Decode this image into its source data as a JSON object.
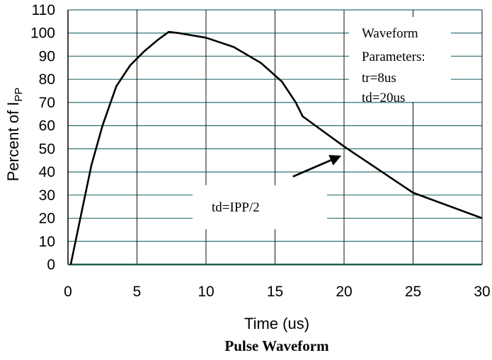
{
  "chart_data": {
    "type": "line",
    "title": "Pulse Waveform",
    "xlabel": "Time (us)",
    "ylabel_main": "Percent of I",
    "ylabel_sub": "PP",
    "xlim": [
      0,
      30
    ],
    "ylim": [
      0,
      110
    ],
    "x_ticks": [
      0,
      5,
      10,
      15,
      20,
      25,
      30
    ],
    "y_ticks": [
      0,
      10,
      20,
      30,
      40,
      50,
      60,
      70,
      80,
      90,
      100,
      110
    ],
    "grid": true,
    "series": [
      {
        "x": [
          0.2,
          0.9,
          1.7,
          2.5,
          3.5,
          4.5,
          5.5,
          6.5,
          7.3,
          8.0,
          10.0,
          12.0,
          14.0,
          15.5,
          16.5,
          17.0,
          20.0,
          25.0,
          30.0
        ],
        "y": [
          0,
          20,
          43,
          60,
          77,
          86,
          92,
          97,
          100.5,
          100,
          98,
          94,
          87,
          79,
          70,
          64,
          51,
          31,
          20
        ]
      }
    ],
    "annotations": {
      "params_title_1": "Waveform",
      "params_title_2": "Parameters:",
      "tr": "tr=8us",
      "td": "td=20us",
      "td_label": "td=IPP/2",
      "arrow_from": [
        16.3,
        38
      ],
      "arrow_to": [
        19.8,
        47
      ]
    }
  }
}
